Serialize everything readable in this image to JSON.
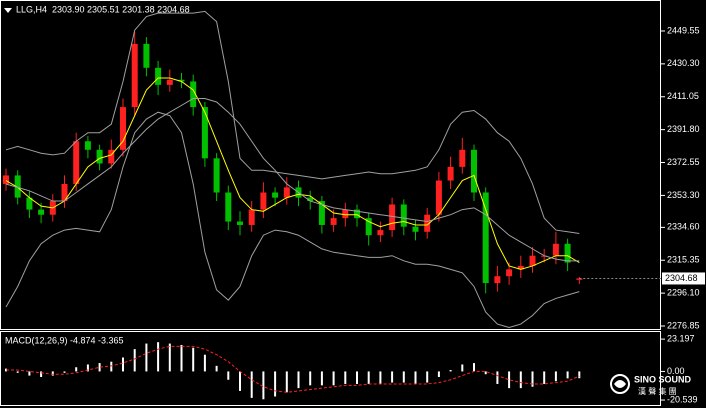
{
  "chart_data": [
    {
      "type": "candlestick",
      "title": "LLG,H4  2303.90 2305.51 2301.38 2304.68",
      "open": [
        2360,
        2365,
        2352,
        2345,
        2342,
        2350,
        2360,
        2385,
        2380,
        2372,
        2380,
        2405,
        2442,
        2428,
        2418,
        2421,
        2420,
        2405,
        2375,
        2355,
        2338,
        2336,
        2345,
        2355,
        2352,
        2358,
        2352,
        2350,
        2336,
        2340,
        2345,
        2340,
        2330,
        2333,
        2348,
        2335,
        2332,
        2342,
        2362,
        2370,
        2380,
        2355,
        2302,
        2306,
        2310,
        2312,
        2318,
        2318,
        2325,
        2303.9
      ],
      "high": [
        2369,
        2368,
        2356,
        2349,
        2354,
        2365,
        2390,
        2388,
        2383,
        2386,
        2410,
        2449,
        2446,
        2432,
        2427,
        2425,
        2424,
        2408,
        2378,
        2359,
        2344,
        2350,
        2361,
        2358,
        2364,
        2362,
        2356,
        2353,
        2345,
        2349,
        2348,
        2343,
        2338,
        2352,
        2351,
        2339,
        2346,
        2367,
        2376,
        2387,
        2383,
        2358,
        2312,
        2314,
        2318,
        2323,
        2322,
        2332,
        2328,
        2305.51
      ],
      "low": [
        2356,
        2348,
        2340,
        2337,
        2338,
        2346,
        2356,
        2375,
        2368,
        2369,
        2376,
        2400,
        2423,
        2412,
        2414,
        2416,
        2400,
        2370,
        2350,
        2333,
        2330,
        2332,
        2340,
        2347,
        2348,
        2347,
        2345,
        2331,
        2332,
        2335,
        2335,
        2324,
        2326,
        2329,
        2330,
        2327,
        2328,
        2338,
        2357,
        2366,
        2350,
        2296,
        2297,
        2301,
        2305,
        2308,
        2314,
        2313,
        2309,
        2301.38
      ],
      "close": [
        2365,
        2352,
        2345,
        2342,
        2350,
        2360,
        2385,
        2380,
        2372,
        2380,
        2405,
        2442,
        2428,
        2418,
        2421,
        2420,
        2405,
        2375,
        2355,
        2338,
        2336,
        2345,
        2355,
        2352,
        2358,
        2352,
        2350,
        2336,
        2340,
        2345,
        2340,
        2330,
        2333,
        2348,
        2335,
        2332,
        2342,
        2362,
        2370,
        2380,
        2355,
        2302,
        2306,
        2310,
        2312,
        2318,
        2318,
        2325,
        2314,
        2304.68
      ],
      "up_color": "#ff2020",
      "down_color": "#00c000",
      "series": [
        {
          "color": "#ffff00",
          "values": [
            2362,
            2358,
            2352,
            2347,
            2346,
            2350,
            2360,
            2370,
            2375,
            2377,
            2385,
            2400,
            2415,
            2422,
            2422,
            2420,
            2415,
            2402,
            2385,
            2368,
            2352,
            2345,
            2344,
            2348,
            2352,
            2354,
            2353,
            2348,
            2343,
            2342,
            2342,
            2338,
            2335,
            2337,
            2338,
            2336,
            2336,
            2342,
            2352,
            2362,
            2365,
            2345,
            2325,
            2312,
            2310,
            2312,
            2315,
            2318,
            2318,
            2314
          ]
        },
        {
          "color": "#a0a0a0",
          "values": [
            2360,
            2358,
            2356,
            2353,
            2350,
            2350,
            2355,
            2360,
            2365,
            2370,
            2378,
            2385,
            2392,
            2398,
            2402,
            2406,
            2410,
            2410,
            2408,
            2402,
            2395,
            2385,
            2375,
            2368,
            2360,
            2355,
            2350,
            2348,
            2346,
            2345,
            2344,
            2343,
            2342,
            2341,
            2340,
            2339,
            2338,
            2340,
            2342,
            2345,
            2346,
            2342,
            2336,
            2330,
            2326,
            2322,
            2318,
            2316,
            2315,
            2315
          ]
        },
        {
          "color": "#a0a0a0",
          "values": [
            2380,
            2382,
            2380,
            2378,
            2377,
            2378,
            2385,
            2390,
            2390,
            2395,
            2420,
            2450,
            2458,
            2460,
            2460,
            2460,
            2460,
            2461,
            2455,
            2420,
            2375,
            2368,
            2368,
            2367,
            2366,
            2365,
            2364,
            2363,
            2364,
            2365,
            2366,
            2367,
            2366,
            2366,
            2367,
            2368,
            2370,
            2380,
            2395,
            2402,
            2403,
            2398,
            2390,
            2385,
            2375,
            2360,
            2340,
            2333,
            2332,
            2331
          ]
        },
        {
          "color": "#a0a0a0",
          "values": [
            2288,
            2300,
            2315,
            2325,
            2330,
            2333,
            2334,
            2333,
            2332,
            2345,
            2370,
            2390,
            2398,
            2402,
            2400,
            2390,
            2360,
            2320,
            2298,
            2292,
            2300,
            2318,
            2330,
            2333,
            2332,
            2330,
            2326,
            2322,
            2320,
            2319,
            2318,
            2317,
            2317,
            2318,
            2315,
            2313,
            2313,
            2312,
            2310,
            2308,
            2300,
            2285,
            2278,
            2276,
            2278,
            2283,
            2290,
            2293,
            2295,
            2297
          ]
        }
      ],
      "ylim": [
        2275.1,
        2467.1
      ],
      "yticks": [
        2449.55,
        {
          "value": 2430.3,
          "label": "2430.30"
        },
        2411.05,
        {
          "value": 2391.8,
          "label": "2391.80"
        },
        2372.55,
        {
          "value": 2353.3,
          "label": "2353.30"
        },
        {
          "value": 2334.6,
          "label": "2334.60"
        },
        2315.35,
        {
          "value": 2296.1,
          "label": "2296.10"
        },
        2276.85
      ],
      "current_price": 2304.68
    },
    {
      "type": "macd",
      "title": "MACD(12,26,9) -4.874 -3.365",
      "histogram": [
        2,
        -1,
        -3,
        -4,
        -3,
        -1,
        3,
        5,
        6,
        7,
        10,
        16,
        20,
        21,
        20,
        19,
        17,
        12,
        4,
        -6,
        -14,
        -19,
        -20,
        -18,
        -15,
        -12,
        -10,
        -10,
        -10,
        -9,
        -9,
        -9,
        -9,
        -8,
        -8,
        -9,
        -8,
        -4,
        1,
        5,
        6,
        -2,
        -9,
        -12,
        -12,
        -11,
        -9,
        -7,
        -5,
        -4.874
      ],
      "signal": [
        1,
        1,
        0,
        -1,
        -2,
        -2,
        -1,
        1,
        3,
        4,
        6,
        9,
        13,
        16,
        18,
        18,
        18,
        16,
        12,
        7,
        0,
        -6,
        -11,
        -14,
        -15,
        -14,
        -13,
        -12,
        -11,
        -10,
        -10,
        -9,
        -9,
        -9,
        -9,
        -9,
        -9,
        -8,
        -6,
        -3,
        0,
        0,
        -3,
        -6,
        -8,
        -9,
        -9,
        -8,
        -7,
        -3.365
      ],
      "hist_color": "#ffffff",
      "signal_color": "#ff2020",
      "ylim": [
        -24.1,
        28.3
      ],
      "yticks": [
        23.197,
        {
          "value": 0,
          "label": "0.00"
        },
        -20.539
      ]
    }
  ],
  "logo": {
    "text": "SINO SOUND",
    "subtext": "漢 聲 集 團"
  }
}
